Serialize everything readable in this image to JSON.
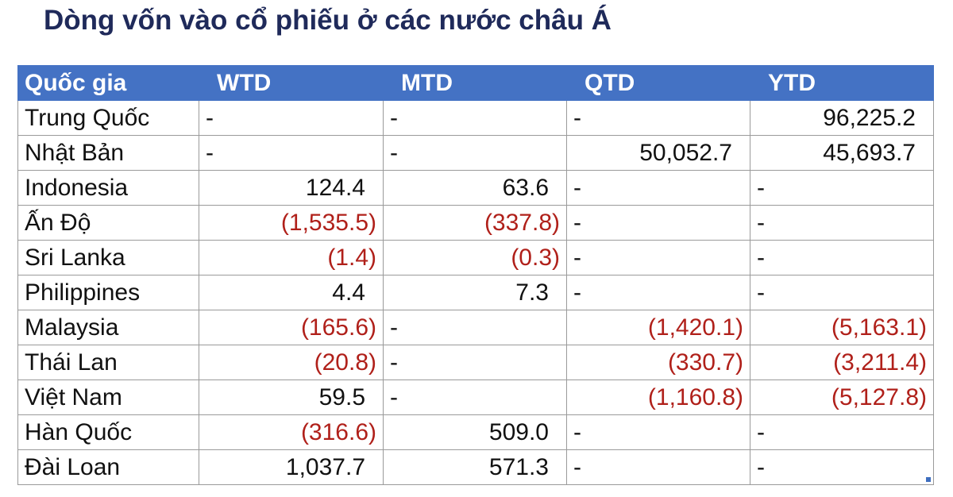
{
  "title": "Dòng vốn vào cổ phiếu ở các nước châu Á",
  "table": {
    "header": [
      "Quốc gia",
      "WTD",
      "MTD",
      "QTD",
      "YTD"
    ],
    "rows": [
      [
        "Trung Quốc",
        "-",
        "-",
        "-",
        "96,225.2"
      ],
      [
        "Nhật Bản",
        "-",
        "-",
        "50,052.7",
        "45,693.7"
      ],
      [
        "Indonesia",
        "124.4",
        "63.6",
        "-",
        "-"
      ],
      [
        "Ấn Độ",
        "(1,535.5)",
        "(337.8)",
        "-",
        "-"
      ],
      [
        "Sri Lanka",
        "(1.4)",
        "(0.3)",
        "-",
        "-"
      ],
      [
        "Philippines",
        "4.4",
        "7.3",
        "-",
        "-"
      ],
      [
        "Malaysia",
        "(165.6)",
        "-",
        "(1,420.1)",
        "(5,163.1)"
      ],
      [
        "Thái Lan",
        "(20.8)",
        "-",
        "(330.7)",
        "(3,211.4)"
      ],
      [
        "Việt Nam",
        "59.5",
        "-",
        "(1,160.8)",
        "(5,127.8)"
      ],
      [
        "Hàn Quốc",
        "(316.6)",
        "509.0",
        "-",
        "-"
      ],
      [
        "Đài Loan",
        "1,037.7",
        "571.3",
        "-",
        "-"
      ]
    ]
  }
}
